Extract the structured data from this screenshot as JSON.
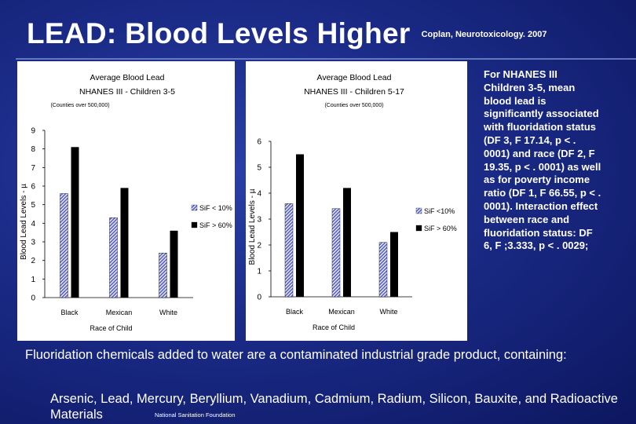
{
  "slide": {
    "title": "LEAD: Blood Levels Higher",
    "citation": "Coplan, Neurotoxicology. 2007",
    "side_text": "For NHANES III Children 3-5, mean blood lead is significantly associated with fluoridation status (DF 3, F 17.14, p < . 0001) and race (DF 2, F 19.35, p < . 0001) as well as for poverty income ratio (DF 1, F 66.55, p < . 0001). Interaction effect between race and fluoridation status: DF 6, F ;3.333, p < . 0029;",
    "bottom_line1": "Fluoridation chemicals added to water are a contaminated industrial grade product, containing:",
    "bottom_line2": "Arsenic, Lead, Mercury, Beryllium, Vanadium, Cadmium, Radium, Silicon, Bauxite, and Radioactive Materials",
    "source_note": "National Sanitation Foundation"
  },
  "colors": {
    "background": "#1a2a86",
    "bar_hatched": "#5a64c8",
    "bar_solid": "#000000"
  },
  "chart_data": [
    {
      "type": "bar",
      "title": "Average Blood Lead",
      "subtitle": "NHANES III - Children 3-5",
      "note": "(Counties over 500,000)",
      "categories": [
        "Black",
        "Mexican",
        "White"
      ],
      "series": [
        {
          "name": "SiF < 10%",
          "values": [
            5.6,
            4.3,
            2.4
          ],
          "style": "hatched"
        },
        {
          "name": "SiF > 60%",
          "values": [
            8.1,
            5.9,
            3.6
          ],
          "style": "solid"
        }
      ],
      "xlabel": "Race of Child",
      "ylabel": "Blood Lead Levels - µ",
      "ylim": [
        0,
        9
      ],
      "yticks": [
        0,
        1,
        2,
        3,
        4,
        5,
        6,
        7,
        8,
        9
      ],
      "legend": "right",
      "grid": false
    },
    {
      "type": "bar",
      "title": "Average Blood Lead",
      "subtitle": "NHANES III - Children 5-17",
      "note": "(Counties over 500,000)",
      "categories": [
        "Black",
        "Mexican",
        "White"
      ],
      "series": [
        {
          "name": "SiF <10%",
          "values": [
            3.6,
            3.4,
            2.1
          ],
          "style": "hatched"
        },
        {
          "name": "SiF > 60%",
          "values": [
            5.5,
            4.2,
            2.5
          ],
          "style": "solid"
        }
      ],
      "xlabel": "Race of Child",
      "ylabel": "Blood Lead Levels - µ",
      "ylim": [
        0,
        6
      ],
      "yticks": [
        0,
        1,
        2,
        3,
        4,
        5,
        6
      ],
      "legend": "right",
      "grid": false
    }
  ]
}
